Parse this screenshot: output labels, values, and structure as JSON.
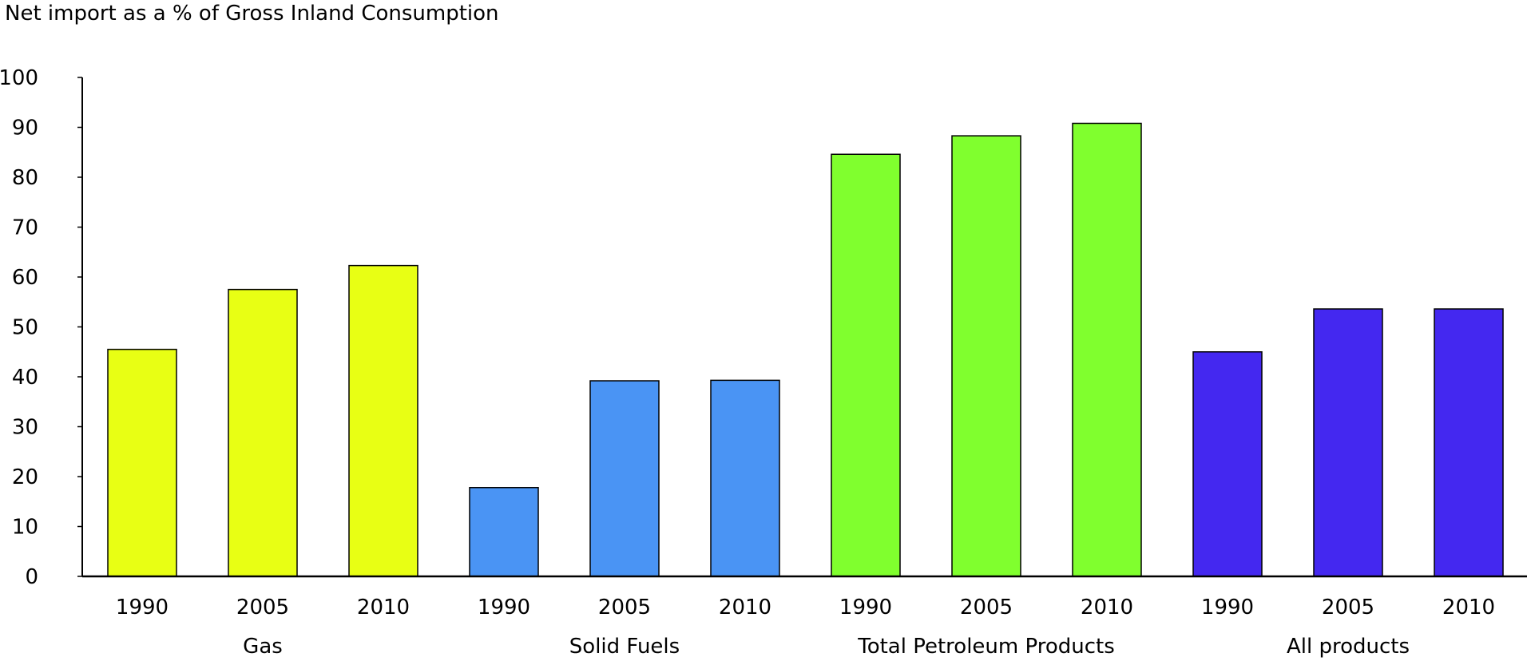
{
  "chart_data": {
    "type": "bar",
    "ylabel": "Net import as a % of Gross Inland Consumption",
    "xlabel": "",
    "ylim": [
      0,
      100
    ],
    "yticks": [
      0,
      10,
      20,
      30,
      40,
      50,
      60,
      70,
      80,
      90,
      100
    ],
    "grid": false,
    "groups": [
      {
        "name": "Gas",
        "color": "#e8ff14",
        "categories": [
          "1990",
          "2005",
          "2010"
        ],
        "values": [
          45.5,
          57.5,
          62.3
        ]
      },
      {
        "name": "Solid Fuels",
        "color": "#4a94f4",
        "categories": [
          "1990",
          "2005",
          "2010"
        ],
        "values": [
          17.8,
          39.2,
          39.3
        ]
      },
      {
        "name": "Total Petroleum Products",
        "color": "#80ff2e",
        "categories": [
          "1990",
          "2005",
          "2010"
        ],
        "values": [
          84.6,
          88.3,
          90.8
        ]
      },
      {
        "name": "All products",
        "color": "#4428f0",
        "categories": [
          "1990",
          "2005",
          "2010"
        ],
        "values": [
          45.0,
          53.6,
          53.6
        ]
      }
    ]
  }
}
